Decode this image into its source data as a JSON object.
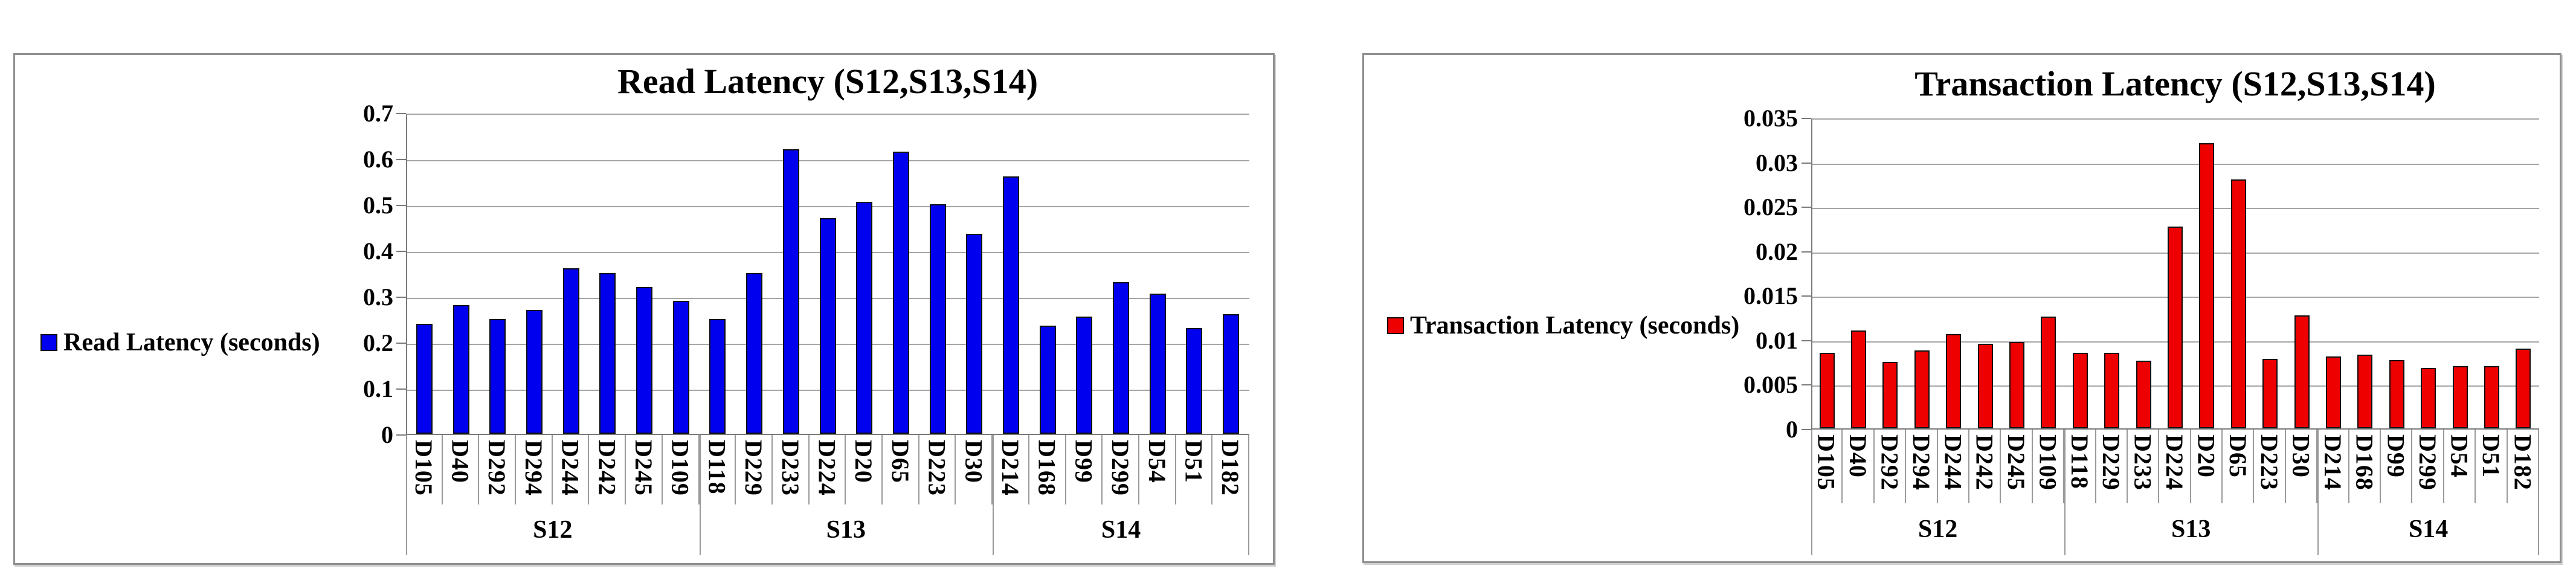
{
  "page": {
    "background": "#ffffff"
  },
  "chart_data": [
    {
      "type": "bar",
      "title": "Read Latency (S12,S13,S14)",
      "legend": "Read Latency (seconds)",
      "legend_position": "left",
      "bar_color": "#0000EE",
      "bar_border_color": "#111111",
      "grid": true,
      "ylim": [
        0,
        0.7
      ],
      "ytick_step": 0.1,
      "y_ticks": [
        "0.7",
        "0.6",
        "0.5",
        "0.4",
        "0.3",
        "0.2",
        "0.1",
        "0"
      ],
      "categories": [
        "D105",
        "D40",
        "D292",
        "D294",
        "D244",
        "D242",
        "D245",
        "D109",
        "D118",
        "D229",
        "D233",
        "D224",
        "D20",
        "D65",
        "D223",
        "D30",
        "D214",
        "D168",
        "D99",
        "D299",
        "D54",
        "D51",
        "D182"
      ],
      "values": [
        0.24,
        0.28,
        0.25,
        0.27,
        0.36,
        0.35,
        0.32,
        0.29,
        0.25,
        0.35,
        0.62,
        0.47,
        0.505,
        0.615,
        0.5,
        0.435,
        0.56,
        0.235,
        0.255,
        0.33,
        0.305,
        0.23,
        0.26
      ],
      "groups": [
        {
          "label": "S12",
          "span": 8
        },
        {
          "label": "S13",
          "span": 8
        },
        {
          "label": "S14",
          "span": 7
        }
      ]
    },
    {
      "type": "bar",
      "title": "Transaction Latency (S12,S13,S14)",
      "legend": "Transaction Latency (seconds)",
      "legend_position": "left",
      "bar_color": "#EE0000",
      "bar_border_color": "#111111",
      "grid": true,
      "ylim": [
        0,
        0.035
      ],
      "ytick_step": 0.005,
      "y_ticks": [
        "0.035",
        "0.03",
        "0.025",
        "0.02",
        "0.015",
        "0.01",
        "0.005",
        "0"
      ],
      "categories": [
        "D105",
        "D40",
        "D292",
        "D294",
        "D244",
        "D242",
        "D245",
        "D109",
        "D118",
        "D229",
        "D233",
        "D224",
        "D20",
        "D65",
        "D223",
        "D30",
        "D214",
        "D168",
        "D99",
        "D299",
        "D54",
        "D51",
        "D182"
      ],
      "values": [
        0.0085,
        0.011,
        0.0075,
        0.0088,
        0.0106,
        0.0095,
        0.0097,
        0.0126,
        0.0085,
        0.0085,
        0.0076,
        0.0227,
        0.0321,
        0.028,
        0.0078,
        0.0127,
        0.0081,
        0.0083,
        0.0077,
        0.0068,
        0.007,
        0.007,
        0.009
      ],
      "groups": [
        {
          "label": "S12",
          "span": 8
        },
        {
          "label": "S13",
          "span": 8
        },
        {
          "label": "S14",
          "span": 7
        }
      ]
    }
  ]
}
